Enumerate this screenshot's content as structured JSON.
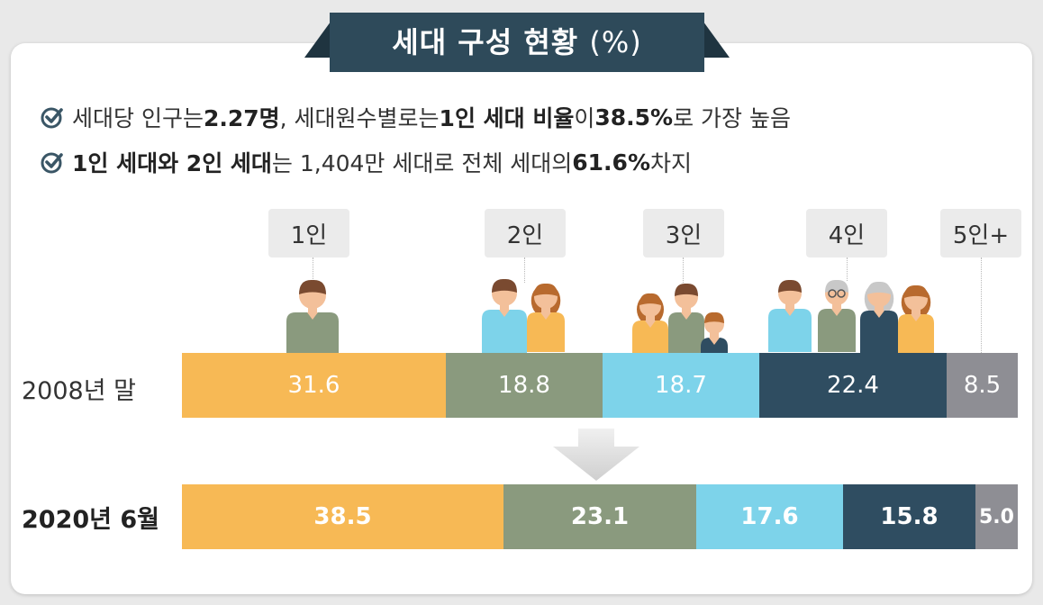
{
  "title": "세대 구성 현황",
  "title_unit": "(%)",
  "bullets": [
    {
      "parts": [
        {
          "t": "세대당 인구는 ",
          "b": false
        },
        {
          "t": "2.27명",
          "b": true
        },
        {
          "t": ", 세대원수별로는 ",
          "b": false
        },
        {
          "t": "1인 세대 비율",
          "b": true
        },
        {
          "t": "이 ",
          "b": false
        },
        {
          "t": "38.5%",
          "b": true
        },
        {
          "t": "로 가장 높음",
          "b": false
        }
      ]
    },
    {
      "parts": [
        {
          "t": "1인 세대와 2인 세대",
          "b": true
        },
        {
          "t": "는 1,404만 세대로 전체 세대의 ",
          "b": false
        },
        {
          "t": "61.6%",
          "b": true
        },
        {
          "t": " 차지",
          "b": false
        }
      ]
    }
  ],
  "colors": {
    "banner": "#2e4a5a",
    "check": "#3a5666",
    "arrow": "#d4d4d4"
  },
  "chart_data": {
    "type": "bar",
    "orientation": "horizontal-stacked",
    "unit": "%",
    "categories": [
      "1인",
      "2인",
      "3인",
      "4인",
      "5인+"
    ],
    "category_colors": [
      "#f7b955",
      "#8a9a7e",
      "#7dd3ea",
      "#2f4d61",
      "#8e8e94"
    ],
    "series": [
      {
        "name": "2008년 말",
        "values": [
          31.6,
          18.8,
          18.7,
          22.4,
          8.5
        ],
        "bold": false
      },
      {
        "name": "2020년 6월",
        "values": [
          38.5,
          23.1,
          17.6,
          15.8,
          5.0
        ],
        "bold": true
      }
    ]
  }
}
